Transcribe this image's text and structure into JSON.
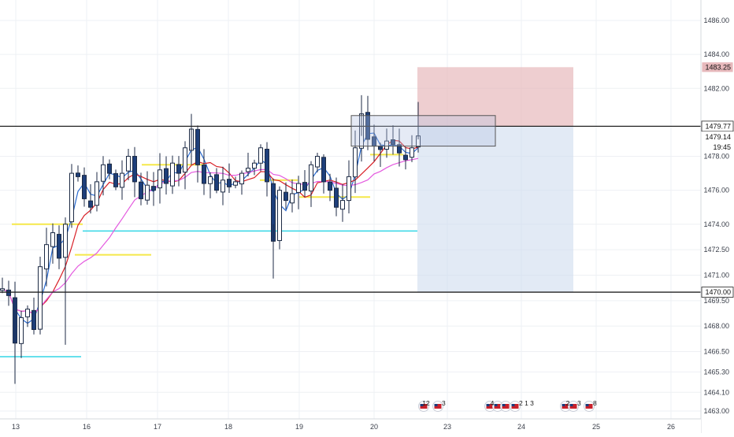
{
  "chart_data": {
    "type": "candlestick",
    "instrument": "",
    "price_axis": {
      "range": [
        1462.6,
        1487.6
      ],
      "ticks": [
        "1486.00",
        "1484.00",
        "1482.00",
        "1478.00",
        "1476.00",
        "1474.00",
        "1472.50",
        "1471.00",
        "1469.50",
        "1468.00",
        "1466.50",
        "1465.30",
        "1464.10",
        "1463.00"
      ],
      "badges": [
        {
          "label": "1483.25",
          "kind": "stop"
        },
        {
          "label": "1479.77",
          "kind": "line"
        },
        {
          "label": "1479.14",
          "kind": "last"
        },
        {
          "label": "19:45",
          "kind": "countdown"
        },
        {
          "label": "1470.00",
          "kind": "line"
        }
      ]
    },
    "time_axis": {
      "labels": [
        "13",
        "16",
        "17",
        "18",
        "19",
        "20",
        "23",
        "24",
        "25",
        "26"
      ]
    },
    "horizontal_lines": [
      1479.77,
      1470.0
    ],
    "colors": {
      "candle_up": "#ffffff",
      "candle_down": "#1e3f7a",
      "ema_fast": "#2a6bd1",
      "ema_mid": "#d81f26",
      "ema_slow": "#e45adf",
      "level_yellow": "#f5e84a",
      "level_cyan": "#35d6e6",
      "stop_zone": "#e7b9bc",
      "target_zone": "#cfdcee"
    },
    "position_tool": {
      "entry": 1479.77,
      "stop": 1483.25,
      "target": 1470.0
    },
    "support_levels_yellow": [
      1477.5,
      1476.6,
      1475.6,
      1474.0,
      1472.2,
      1478.1
    ],
    "support_levels_cyan": [
      1473.6,
      1466.2
    ],
    "events": [
      {
        "label": "12",
        "extra": "3"
      },
      {
        "label": "4",
        "extra": "2 1 3"
      },
      {
        "label": "2",
        "extra": "3"
      },
      {
        "label": "",
        "extra": "8"
      }
    ]
  }
}
